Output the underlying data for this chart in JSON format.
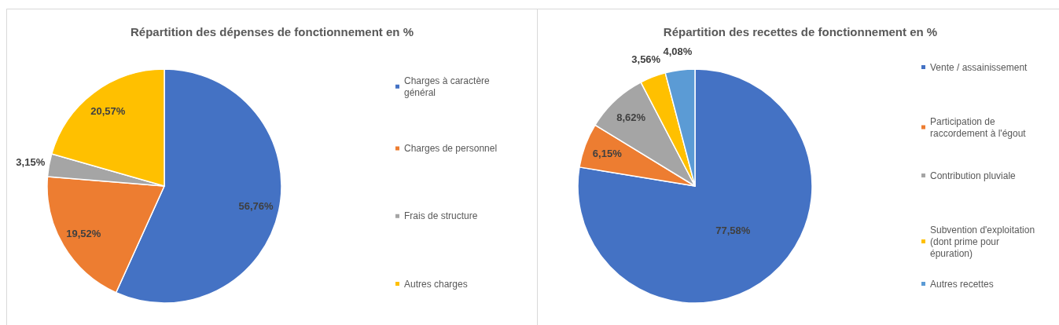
{
  "chart_data": [
    {
      "type": "pie",
      "title": "Répartition des dépenses de fonctionnement en %",
      "categories": [
        "Charges à caractère général",
        "Charges de personnel",
        "Frais de structure",
        "Autres charges"
      ],
      "values": [
        56.76,
        19.52,
        3.15,
        20.57
      ],
      "colors": [
        "#4472c4",
        "#ed7d31",
        "#a5a5a5",
        "#ffc000"
      ],
      "value_labels": [
        "56,76%",
        "19,52%",
        "3,15%",
        "20,57%"
      ],
      "legend": "right"
    },
    {
      "type": "pie",
      "title": "Répartition des recettes de fonctionnement en %",
      "categories": [
        "Vente / assainissement",
        "Participation de raccordement à l'égout",
        "Contribution pluviale",
        "Subvention d'exploitation (dont prime pour épuration)",
        "Autres recettes"
      ],
      "values": [
        77.58,
        6.15,
        8.62,
        3.56,
        4.08
      ],
      "colors": [
        "#4472c4",
        "#ed7d31",
        "#a5a5a5",
        "#ffc000",
        "#5b9bd5"
      ],
      "value_labels": [
        "77,58%",
        "6,15%",
        "8,62%",
        "3,56%",
        "4,08%"
      ],
      "legend": "right"
    }
  ]
}
